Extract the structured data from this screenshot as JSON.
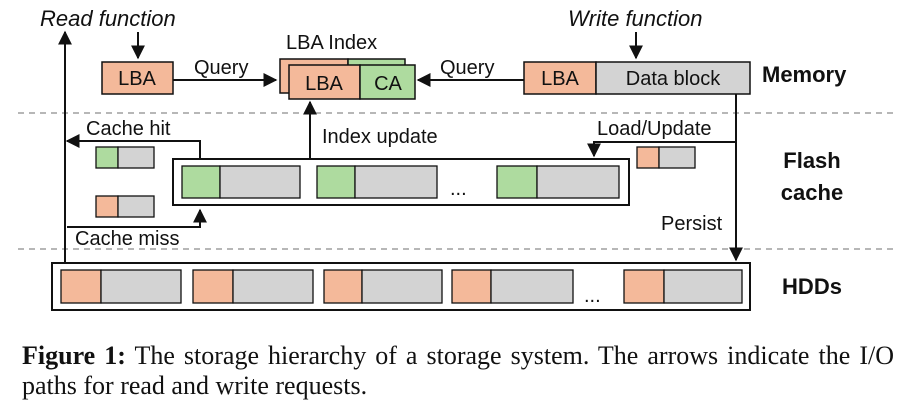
{
  "diagram": {
    "labels": {
      "read_function": "Read function",
      "write_function": "Write function",
      "lba_index": "LBA Index",
      "query_left": "Query",
      "query_right": "Query",
      "lba": "LBA",
      "ca": "CA",
      "data_block": "Data block",
      "index_update": "Index update",
      "cache_hit": "Cache hit",
      "load_update": "Load/Update",
      "cache_miss": "Cache miss",
      "persist": "Persist",
      "ellipsis": "..."
    },
    "tiers": {
      "memory": "Memory",
      "flash_line1": "Flash",
      "flash_line2": "cache",
      "hdds": "HDDs"
    },
    "colors": {
      "lba_orange": "#f4b99a",
      "ca_green": "#aedb9f",
      "data_gray": "#d3d3d3",
      "outline": "#111111",
      "divider": "#8c8c8c"
    }
  },
  "caption": {
    "label": "Figure 1:",
    "text": " The storage hierarchy of a storage system. The arrows indicate the I/O paths for read and write requests."
  }
}
